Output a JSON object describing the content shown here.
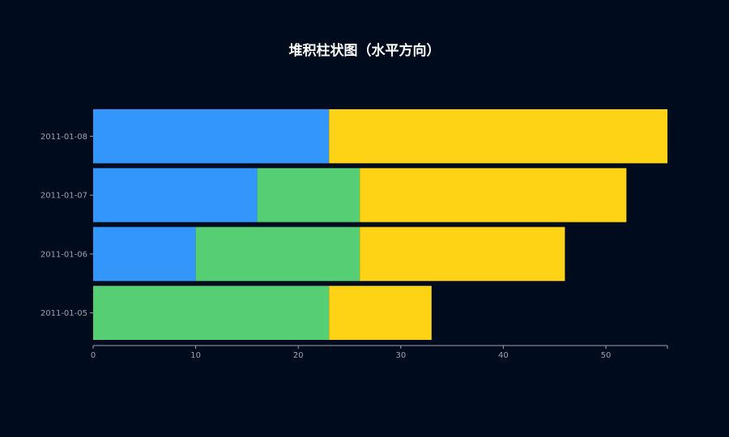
{
  "chart_data": {
    "type": "bar",
    "orientation": "horizontal",
    "stacked": true,
    "title": "堆积柱状图（水平方向）",
    "xlabel": "",
    "ylabel": "",
    "categories": [
      "2011-01-05",
      "2011-01-06",
      "2011-01-07",
      "2011-01-08"
    ],
    "series": [
      {
        "color": "#3296fa",
        "values": [
          0,
          10,
          16,
          23
        ]
      },
      {
        "color": "#55ce74",
        "values": [
          23,
          16,
          10,
          0
        ]
      },
      {
        "color": "#fed215",
        "values": [
          10,
          20,
          26,
          33
        ]
      }
    ],
    "xlim": [
      0,
      56
    ],
    "xticks": [
      0,
      10,
      20,
      30,
      40,
      50
    ],
    "grid": false,
    "legend": "none"
  },
  "colors": {
    "background": "#000c1d",
    "axis": "#9aa3ad",
    "title": "#ffffff"
  }
}
